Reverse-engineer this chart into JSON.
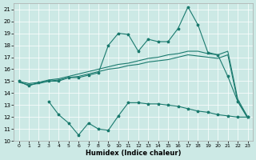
{
  "xlabel": "Humidex (Indice chaleur)",
  "background_color": "#cce9e5",
  "grid_color": "#ffffff",
  "line_color": "#1a7a6e",
  "xlim": [
    -0.5,
    23.5
  ],
  "ylim": [
    10,
    21.5
  ],
  "yticks": [
    10,
    11,
    12,
    13,
    14,
    15,
    16,
    17,
    18,
    19,
    20,
    21
  ],
  "xticks": [
    0,
    1,
    2,
    3,
    4,
    5,
    6,
    7,
    8,
    9,
    10,
    11,
    12,
    13,
    14,
    15,
    16,
    17,
    18,
    19,
    20,
    21,
    22,
    23
  ],
  "top_jagged_x": [
    0,
    1,
    2,
    3,
    4,
    5,
    6,
    7,
    8,
    9,
    10,
    11,
    12,
    13,
    14,
    15,
    16,
    17,
    18,
    19,
    20,
    21,
    22,
    23
  ],
  "top_jagged_y": [
    15.0,
    14.6,
    14.9,
    15.0,
    15.0,
    15.3,
    15.3,
    15.5,
    15.7,
    18.0,
    19.0,
    18.9,
    17.5,
    18.5,
    18.3,
    18.3,
    19.4,
    21.2,
    19.7,
    17.4,
    17.2,
    15.4,
    13.3,
    12.0
  ],
  "upper_band_x": [
    0,
    1,
    2,
    3,
    4,
    5,
    6,
    7,
    8,
    9,
    10,
    11,
    12,
    13,
    14,
    15,
    16,
    17,
    18,
    19,
    20,
    21,
    22,
    23
  ],
  "upper_band_y": [
    15.0,
    14.8,
    14.9,
    15.1,
    15.2,
    15.4,
    15.6,
    15.8,
    16.0,
    16.2,
    16.4,
    16.5,
    16.7,
    16.9,
    17.0,
    17.2,
    17.3,
    17.5,
    17.5,
    17.3,
    17.2,
    17.5,
    13.5,
    12.0
  ],
  "lower_band_x": [
    0,
    1,
    2,
    3,
    4,
    5,
    6,
    7,
    8,
    9,
    10,
    11,
    12,
    13,
    14,
    15,
    16,
    17,
    18,
    19,
    20,
    21,
    22,
    23
  ],
  "lower_band_y": [
    14.9,
    14.7,
    14.8,
    15.0,
    15.1,
    15.3,
    15.4,
    15.6,
    15.8,
    16.0,
    16.1,
    16.3,
    16.4,
    16.6,
    16.7,
    16.8,
    17.0,
    17.2,
    17.1,
    17.0,
    16.9,
    17.2,
    13.3,
    11.9
  ],
  "bot_jagged_x": [
    3,
    4,
    5,
    6,
    7,
    8,
    9,
    10,
    11,
    12,
    13,
    14,
    15,
    16,
    17,
    18,
    19,
    20,
    21,
    22,
    23
  ],
  "bot_jagged_y": [
    13.3,
    12.2,
    11.5,
    10.5,
    11.5,
    11.0,
    10.9,
    12.1,
    13.2,
    13.2,
    13.1,
    13.1,
    13.0,
    12.9,
    12.7,
    12.5,
    12.4,
    12.2,
    12.1,
    12.0,
    12.0
  ]
}
